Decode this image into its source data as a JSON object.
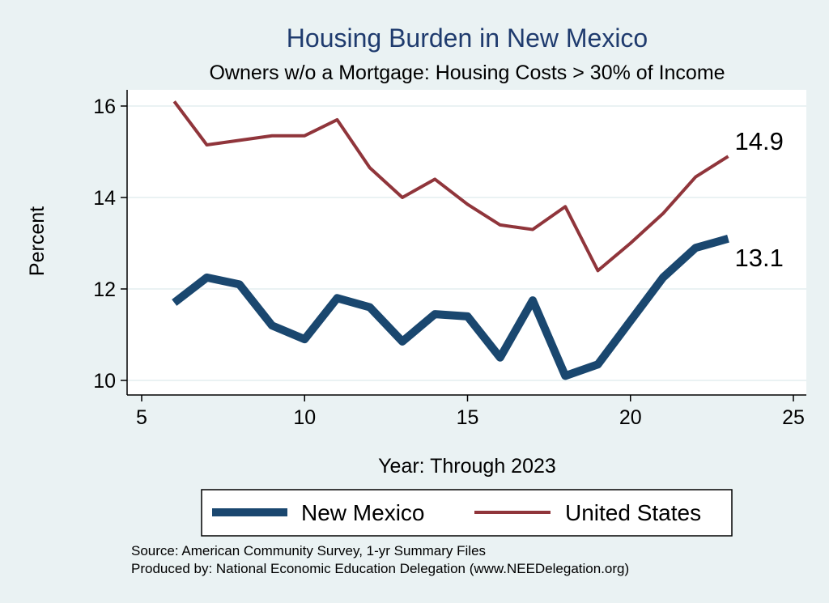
{
  "chart_data": {
    "type": "line",
    "title": "Housing Burden in New Mexico",
    "subtitle": "Owners w/o a Mortgage: Housing Costs > 30% of Income",
    "xlabel": "Year: Through 2023",
    "ylabel": "Percent",
    "xlim": [
      5,
      25
    ],
    "ylim": [
      10,
      16
    ],
    "xticks": [
      5,
      10,
      15,
      20,
      25
    ],
    "yticks": [
      10,
      12,
      14,
      16
    ],
    "grid": true,
    "legend_position": "bottom",
    "series": [
      {
        "name": "New Mexico",
        "color": "#1a476f",
        "x": [
          6,
          7,
          8,
          9,
          10,
          11,
          12,
          13,
          14,
          15,
          16,
          17,
          18,
          19,
          20,
          21,
          22,
          23
        ],
        "values": [
          11.7,
          12.25,
          12.1,
          11.2,
          10.9,
          11.8,
          11.6,
          10.85,
          11.45,
          11.4,
          10.5,
          11.75,
          10.1,
          10.35,
          11.3,
          12.25,
          12.9,
          13.1
        ],
        "end_label": "13.1"
      },
      {
        "name": "United States",
        "color": "#90353b",
        "x": [
          6,
          7,
          8,
          9,
          10,
          11,
          12,
          13,
          14,
          15,
          16,
          17,
          18,
          19,
          20,
          21,
          22,
          23
        ],
        "values": [
          16.1,
          15.15,
          15.25,
          15.35,
          15.35,
          15.7,
          14.65,
          14.0,
          14.4,
          13.85,
          13.4,
          13.3,
          13.8,
          12.4,
          13.0,
          13.65,
          14.45,
          14.9
        ],
        "end_label": "14.9"
      }
    ]
  },
  "notes": {
    "source": "Source: American Community Survey, 1-yr Summary Files",
    "produced": "Produced by: National Economic Education Delegation (www.NEEDelegation.org)"
  }
}
